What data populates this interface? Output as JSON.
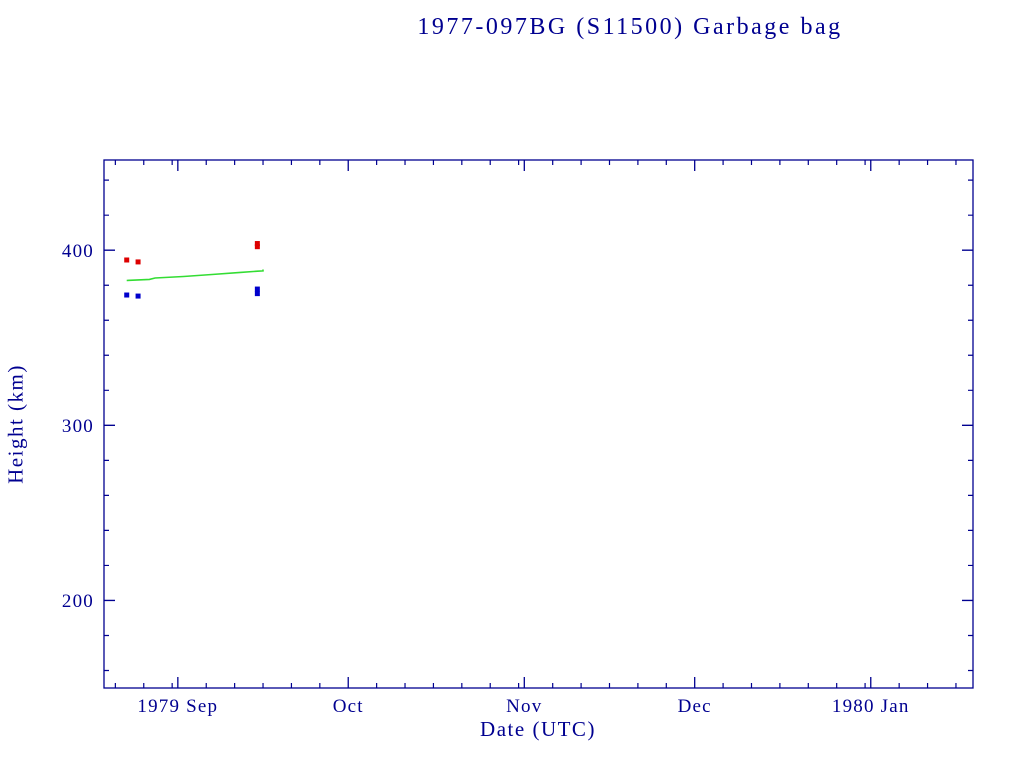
{
  "page": {
    "background": "#ffffff",
    "foreground": "#000090"
  },
  "chart_data": {
    "type": "scatter",
    "title": "1977-097BG (S11500) Garbage bag",
    "xlabel": "Date (UTC)",
    "ylabel": "Height (km)",
    "grid": false,
    "legend": false,
    "axis_color": "#000090",
    "x_axis": {
      "start_date": "1979-08-19",
      "end_date": "1980-01-19",
      "major_ticks": [
        {
          "date": "1979-09-01",
          "label": "1979 Sep"
        },
        {
          "date": "1979-10-01",
          "label": "Oct"
        },
        {
          "date": "1979-11-01",
          "label": "Nov"
        },
        {
          "date": "1979-12-01",
          "label": "Dec"
        },
        {
          "date": "1980-01-01",
          "label": "1980 Jan"
        }
      ],
      "minor_tick_days_of_month": [
        6,
        11,
        16,
        21,
        26,
        31
      ]
    },
    "y_axis": {
      "min": 150,
      "max": 451.5,
      "major_ticks": [
        200,
        300,
        400
      ],
      "minor_step": 20,
      "minor_start": 160,
      "minor_end": 440
    },
    "series": [
      {
        "name": "red-squares",
        "type": "scatter",
        "marker": "filled-square",
        "color": "#dd0000",
        "points": [
          [
            "1979-08-23",
            394.4
          ],
          [
            "1979-08-25",
            393.3
          ],
          [
            "1979-09-15",
            403.8
          ],
          [
            "1979-09-15",
            402.0
          ]
        ]
      },
      {
        "name": "green-line",
        "type": "line",
        "color": "#33dd33",
        "points": [
          [
            "1979-08-23",
            382.7
          ],
          [
            "1979-08-27",
            383.3
          ],
          [
            "1979-08-28",
            384.1
          ],
          [
            "1979-09-02",
            385.0
          ],
          [
            "1979-09-07",
            386.1
          ],
          [
            "1979-09-12",
            387.3
          ],
          [
            "1979-09-15",
            388.0
          ],
          [
            "1979-09-16",
            388.2
          ],
          [
            "1979-09-16",
            389.0
          ]
        ]
      },
      {
        "name": "blue-squares",
        "type": "scatter",
        "marker": "filled-square",
        "color": "#0000cc",
        "points": [
          [
            "1979-08-23",
            374.4
          ],
          [
            "1979-08-25",
            373.8
          ],
          [
            "1979-09-15",
            377.8
          ],
          [
            "1979-09-15",
            375.2
          ]
        ]
      }
    ]
  }
}
